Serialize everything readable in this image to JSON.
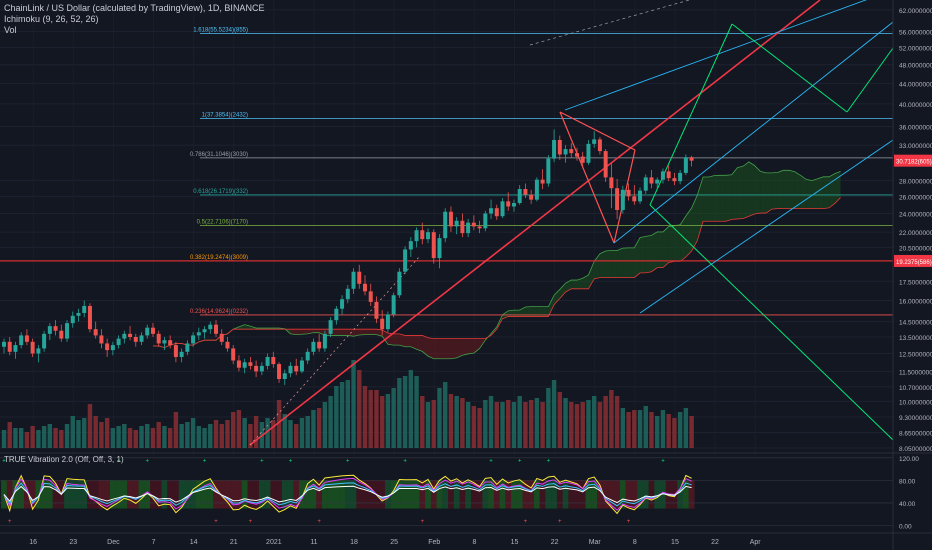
{
  "chart_data": {
    "type": "candlestick",
    "title": "ChainLink / US Dollar (calculated by TradingView), 1D, BINANCE",
    "overlays": [
      "Ichimoku (9, 26, 52, 26)",
      "Vol"
    ],
    "yaxis": {
      "scale": "log",
      "unit": "USD",
      "ticks": [
        {
          "value": 62,
          "label": "62.00000000"
        },
        {
          "value": 56,
          "label": "56.00000000"
        },
        {
          "value": 52,
          "label": "52.00000000"
        },
        {
          "value": 48,
          "label": "48.00000000"
        },
        {
          "value": 44,
          "label": "44.00000000"
        },
        {
          "value": 40,
          "label": "40.00000000"
        },
        {
          "value": 36,
          "label": "36.00000000"
        },
        {
          "value": 33,
          "label": "33.00000000"
        },
        {
          "value": 28,
          "label": "28.00000000"
        },
        {
          "value": 26,
          "label": "26.00000000"
        },
        {
          "value": 24,
          "label": "24.00000000"
        },
        {
          "value": 22,
          "label": "22.00000000"
        },
        {
          "value": 20.5,
          "label": "20.50000000"
        },
        {
          "value": 17.5,
          "label": "17.50000000"
        },
        {
          "value": 16,
          "label": "16.00000000"
        },
        {
          "value": 14.5,
          "label": "14.50000000"
        },
        {
          "value": 13.5,
          "label": "13.50000000"
        },
        {
          "value": 12.5,
          "label": "12.50000000"
        },
        {
          "value": 11.5,
          "label": "11.50000000"
        },
        {
          "value": 10.7,
          "label": "10.70000000"
        },
        {
          "value": 10,
          "label": "10.00000000"
        },
        {
          "value": 9.3,
          "label": "9.30000000"
        },
        {
          "value": 8.65,
          "label": "8.65000000"
        },
        {
          "value": 8.05,
          "label": "8.05000000"
        }
      ],
      "range": [
        7.9,
        64
      ]
    },
    "xaxis": {
      "ticks": [
        "16",
        "23",
        "Dec",
        "7",
        "14",
        "21",
        "2021",
        "11",
        "18",
        "25",
        "Feb",
        "8",
        "15",
        "22",
        "Mar",
        "8",
        "15",
        "22",
        "Apr"
      ]
    },
    "fib_levels": [
      {
        "label": "1.618(55.5234)(855)",
        "value": 55.52
      },
      {
        "label": "1(37.3854)(2432)",
        "value": 37.39
      },
      {
        "label": "0.786(31.1046)(3030)",
        "value": 31.1
      },
      {
        "label": "0.618(26.1719)(332)",
        "value": 26.17
      },
      {
        "label": "0.5(22.7106)(7170)",
        "value": 22.71
      },
      {
        "label": "0.382(19.2474)(3009)",
        "value": 19.25
      },
      {
        "label": "0.236(14.9624)(0232)",
        "value": 14.96
      }
    ],
    "price_tags": [
      {
        "label": "30.7182(605)",
        "value": 30.7,
        "color": "#f23645"
      },
      {
        "label": "19.2375(586)",
        "value": 19.24,
        "color": "#f23645"
      }
    ],
    "candles_ohlc": [
      [
        12.9,
        13.4,
        12.5,
        13.2
      ],
      [
        13.2,
        13.5,
        12.4,
        12.6
      ],
      [
        12.6,
        13.2,
        12.2,
        13.0
      ],
      [
        13.0,
        13.8,
        12.8,
        13.6
      ],
      [
        13.6,
        14.0,
        13.0,
        13.2
      ],
      [
        13.2,
        13.4,
        12.3,
        12.5
      ],
      [
        12.5,
        13.0,
        12.0,
        12.8
      ],
      [
        12.8,
        13.9,
        12.6,
        13.7
      ],
      [
        13.7,
        14.4,
        13.3,
        14.2
      ],
      [
        14.2,
        14.6,
        13.6,
        13.9
      ],
      [
        13.9,
        14.3,
        13.2,
        13.4
      ],
      [
        13.4,
        14.6,
        13.2,
        14.4
      ],
      [
        14.4,
        15.2,
        14.1,
        14.9
      ],
      [
        14.9,
        15.4,
        14.5,
        15.1
      ],
      [
        15.1,
        16.0,
        14.8,
        15.6
      ],
      [
        15.6,
        15.8,
        13.8,
        14.0
      ],
      [
        14.0,
        14.5,
        13.4,
        13.6
      ],
      [
        13.6,
        14.0,
        12.8,
        13.1
      ],
      [
        13.1,
        13.4,
        12.3,
        12.7
      ],
      [
        12.7,
        13.2,
        12.4,
        13.0
      ],
      [
        13.0,
        13.6,
        12.8,
        13.4
      ],
      [
        13.4,
        13.9,
        13.1,
        13.7
      ],
      [
        13.7,
        14.2,
        13.3,
        13.5
      ],
      [
        13.5,
        13.7,
        12.9,
        13.2
      ],
      [
        13.2,
        13.8,
        13.0,
        13.6
      ],
      [
        13.6,
        14.3,
        13.4,
        14.1
      ],
      [
        14.1,
        14.4,
        13.5,
        13.7
      ],
      [
        13.7,
        13.9,
        12.9,
        13.1
      ],
      [
        13.1,
        13.5,
        12.7,
        13.3
      ],
      [
        13.3,
        13.6,
        12.8,
        13.0
      ],
      [
        13.0,
        13.2,
        12.0,
        12.3
      ],
      [
        12.3,
        12.8,
        12.0,
        12.6
      ],
      [
        12.6,
        13.3,
        12.4,
        13.1
      ],
      [
        13.1,
        13.8,
        12.9,
        13.6
      ],
      [
        13.6,
        14.1,
        13.3,
        13.8
      ],
      [
        13.8,
        14.2,
        13.4,
        14.0
      ],
      [
        14.0,
        14.5,
        13.7,
        14.3
      ],
      [
        14.3,
        14.6,
        13.5,
        13.7
      ],
      [
        13.7,
        14.0,
        13.0,
        13.2
      ],
      [
        13.2,
        13.5,
        12.6,
        12.8
      ],
      [
        12.8,
        13.0,
        11.9,
        12.1
      ],
      [
        12.1,
        12.4,
        11.5,
        11.7
      ],
      [
        11.7,
        12.2,
        11.4,
        12.0
      ],
      [
        12.0,
        12.3,
        11.6,
        11.8
      ],
      [
        11.8,
        12.1,
        11.2,
        11.5
      ],
      [
        11.5,
        12.0,
        11.3,
        11.8
      ],
      [
        11.8,
        12.5,
        11.6,
        12.3
      ],
      [
        12.3,
        12.6,
        11.7,
        11.9
      ],
      [
        11.9,
        12.0,
        10.9,
        11.1
      ],
      [
        11.1,
        11.6,
        10.8,
        11.4
      ],
      [
        11.4,
        12.0,
        11.2,
        11.8
      ],
      [
        11.8,
        12.2,
        11.3,
        11.5
      ],
      [
        11.5,
        12.3,
        11.4,
        12.1
      ],
      [
        12.1,
        12.8,
        11.9,
        12.6
      ],
      [
        12.6,
        13.4,
        12.4,
        13.2
      ],
      [
        13.2,
        13.7,
        12.6,
        12.8
      ],
      [
        12.8,
        13.9,
        12.6,
        13.7
      ],
      [
        13.7,
        14.8,
        13.5,
        14.6
      ],
      [
        14.6,
        15.6,
        14.3,
        15.4
      ],
      [
        15.4,
        16.4,
        15.0,
        16.1
      ],
      [
        16.1,
        17.2,
        15.8,
        16.9
      ],
      [
        16.9,
        18.6,
        16.5,
        18.3
      ],
      [
        18.3,
        18.9,
        16.9,
        17.3
      ],
      [
        17.3,
        18.0,
        16.4,
        16.7
      ],
      [
        16.7,
        17.3,
        15.6,
        15.9
      ],
      [
        15.9,
        16.3,
        14.4,
        14.7
      ],
      [
        14.7,
        15.3,
        13.6,
        14.0
      ],
      [
        14.0,
        15.2,
        13.8,
        15.0
      ],
      [
        15.0,
        16.6,
        14.8,
        16.4
      ],
      [
        16.4,
        18.6,
        16.2,
        18.3
      ],
      [
        18.3,
        20.6,
        18.1,
        20.3
      ],
      [
        20.3,
        21.5,
        19.6,
        21.1
      ],
      [
        21.1,
        22.5,
        20.5,
        22.2
      ],
      [
        22.2,
        23.0,
        20.8,
        21.3
      ],
      [
        21.3,
        22.4,
        20.9,
        22.0
      ],
      [
        22.0,
        22.3,
        19.0,
        19.5
      ],
      [
        19.5,
        21.8,
        18.6,
        21.4
      ],
      [
        21.4,
        24.6,
        21.0,
        24.2
      ],
      [
        24.2,
        24.8,
        22.0,
        22.6
      ],
      [
        22.6,
        23.6,
        21.8,
        23.2
      ],
      [
        23.2,
        24.0,
        21.5,
        21.9
      ],
      [
        21.9,
        23.4,
        21.5,
        23.0
      ],
      [
        23.0,
        23.8,
        22.2,
        22.6
      ],
      [
        22.6,
        23.2,
        21.9,
        22.4
      ],
      [
        22.4,
        24.3,
        22.1,
        24.0
      ],
      [
        24.0,
        25.6,
        23.4,
        24.6
      ],
      [
        24.6,
        25.0,
        23.3,
        23.7
      ],
      [
        23.7,
        25.8,
        23.5,
        25.4
      ],
      [
        25.4,
        26.5,
        24.3,
        24.8
      ],
      [
        24.8,
        25.6,
        24.2,
        25.2
      ],
      [
        25.2,
        27.4,
        25.0,
        26.9
      ],
      [
        26.9,
        27.6,
        25.8,
        26.2
      ],
      [
        26.2,
        26.8,
        25.1,
        25.6
      ],
      [
        25.6,
        28.4,
        25.4,
        28.1
      ],
      [
        28.1,
        29.5,
        26.9,
        27.6
      ],
      [
        27.6,
        31.5,
        27.2,
        31.0
      ],
      [
        31.0,
        35.5,
        30.5,
        33.8
      ],
      [
        33.8,
        34.5,
        30.8,
        31.6
      ],
      [
        31.6,
        33.0,
        30.4,
        32.4
      ],
      [
        32.4,
        33.3,
        31.1,
        31.8
      ],
      [
        31.8,
        32.6,
        30.7,
        31.3
      ],
      [
        31.3,
        32.0,
        29.6,
        30.4
      ],
      [
        30.4,
        33.8,
        30.1,
        33.2
      ],
      [
        33.2,
        35.2,
        32.6,
        33.9
      ],
      [
        33.9,
        34.3,
        31.6,
        32.1
      ],
      [
        32.1,
        32.4,
        27.8,
        28.4
      ],
      [
        28.4,
        30.3,
        24.6,
        27.0
      ],
      [
        27.0,
        28.2,
        23.4,
        24.4
      ],
      [
        24.4,
        27.3,
        24.0,
        26.8
      ],
      [
        26.8,
        27.6,
        25.5,
        26.0
      ],
      [
        26.0,
        27.4,
        25.0,
        25.4
      ],
      [
        25.4,
        27.1,
        25.1,
        26.7
      ],
      [
        26.7,
        28.8,
        26.3,
        28.4
      ],
      [
        28.4,
        29.4,
        27.0,
        27.6
      ],
      [
        27.6,
        28.4,
        26.8,
        28.1
      ],
      [
        28.1,
        29.6,
        27.6,
        29.2
      ],
      [
        29.2,
        30.0,
        27.9,
        28.3
      ],
      [
        28.3,
        29.0,
        27.4,
        27.9
      ],
      [
        27.9,
        29.4,
        27.5,
        29.0
      ],
      [
        29.0,
        31.6,
        28.7,
        31.2
      ],
      [
        31.2,
        31.4,
        29.9,
        30.7
      ]
    ],
    "volume": [
      0.9,
      1.3,
      1.0,
      1.0,
      0.8,
      1.1,
      0.9,
      1.1,
      1.2,
      1.0,
      0.9,
      1.2,
      1.6,
      1.4,
      1.5,
      2.2,
      1.6,
      1.3,
      1.5,
      1.0,
      1.1,
      1.2,
      1.0,
      0.9,
      1.1,
      1.2,
      1.0,
      1.3,
      1.1,
      1.0,
      1.8,
      1.2,
      1.3,
      1.5,
      1.1,
      1.0,
      1.2,
      1.4,
      1.2,
      1.4,
      1.8,
      1.9,
      1.5,
      1.2,
      1.6,
      1.3,
      1.5,
      1.4,
      2.4,
      1.7,
      1.4,
      1.2,
      1.5,
      1.6,
      1.9,
      2.0,
      2.3,
      2.6,
      3.1,
      3.3,
      3.4,
      4.4,
      3.9,
      3.1,
      2.9,
      2.9,
      2.6,
      2.7,
      3.0,
      3.5,
      3.6,
      3.9,
      3.6,
      2.6,
      2.3,
      2.4,
      3.0,
      3.3,
      2.7,
      2.6,
      2.5,
      2.3,
      2.1,
      2.0,
      2.4,
      2.6,
      2.3,
      2.3,
      2.4,
      2.3,
      2.6,
      2.3,
      2.4,
      2.5,
      2.3,
      3.0,
      3.4,
      2.8,
      2.5,
      2.3,
      2.2,
      2.3,
      2.4,
      2.6,
      2.3,
      2.6,
      2.9,
      2.6,
      2.0,
      1.8,
      1.9,
      1.9,
      2.1,
      1.8,
      1.6,
      1.9,
      1.7,
      1.5,
      1.8,
      2.0,
      1.6
    ],
    "indicator": {
      "title": "TRUE Vibration 2.0 (Off, Off, 3, 1)",
      "ticks": [
        {
          "value": 120,
          "label": "120.00"
        },
        {
          "value": 80,
          "label": "80.00"
        },
        {
          "value": 40,
          "label": "40.00"
        },
        {
          "value": 0,
          "label": "0.00"
        }
      ],
      "range": [
        -8,
        125
      ]
    }
  },
  "colors": {
    "background": "#131722",
    "up": "#26a69a",
    "down": "#ef5350",
    "fib_line": "#787b86",
    "fib_label": "#4f8fe0",
    "red_line": "#f23645",
    "green_line": "#4caf50",
    "bright_green": "#00e676",
    "cyan_channel": "#2962ff",
    "cloud_green": "#1b5e20",
    "cloud_red": "#7f1d1d",
    "axis_text": "#b2b5be"
  }
}
